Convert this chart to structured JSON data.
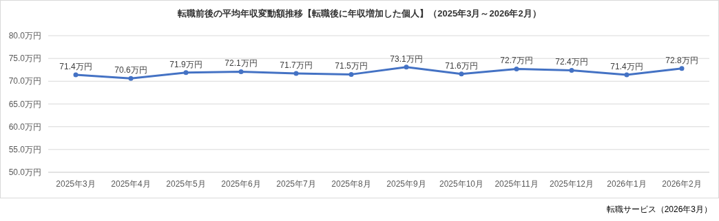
{
  "chart_data": {
    "type": "line",
    "title": "転職前後の平均年収変動額推移【転職後に年収増加した個人】（2025年3月～2026年2月）",
    "categories": [
      "2025年3月",
      "2025年4月",
      "2025年5月",
      "2025年6月",
      "2025年7月",
      "2025年8月",
      "2025年9月",
      "2025年10月",
      "2025年11月",
      "2025年12月",
      "2026年1月",
      "2026年2月"
    ],
    "series": [
      {
        "color": "#4472c4",
        "values": [
          71.4,
          70.6,
          71.9,
          72.1,
          71.7,
          71.5,
          73.1,
          71.6,
          72.7,
          72.4,
          71.4,
          72.8
        ],
        "value_labels": [
          "71.4万円",
          "70.6万円",
          "71.9万円",
          "72.1万円",
          "71.7万円",
          "71.5万円",
          "73.1万円",
          "71.6万円",
          "72.7万円",
          "72.4万円",
          "71.4万円",
          "72.8万円"
        ]
      }
    ],
    "ylim": [
      50,
      80
    ],
    "yticks": [
      {
        "value": 50,
        "label": "50.0万円"
      },
      {
        "value": 55,
        "label": "55.0万円"
      },
      {
        "value": 60,
        "label": "60.0万円"
      },
      {
        "value": 65,
        "label": "65.0万円"
      },
      {
        "value": 70,
        "label": "70.0万円"
      },
      {
        "value": 75,
        "label": "75.0万円"
      },
      {
        "value": 80,
        "label": "80.0万円"
      }
    ],
    "grid": "y",
    "marker": "circle",
    "line_style": "solid",
    "annotations": [
      "転職サービス（2026年3月）"
    ]
  }
}
